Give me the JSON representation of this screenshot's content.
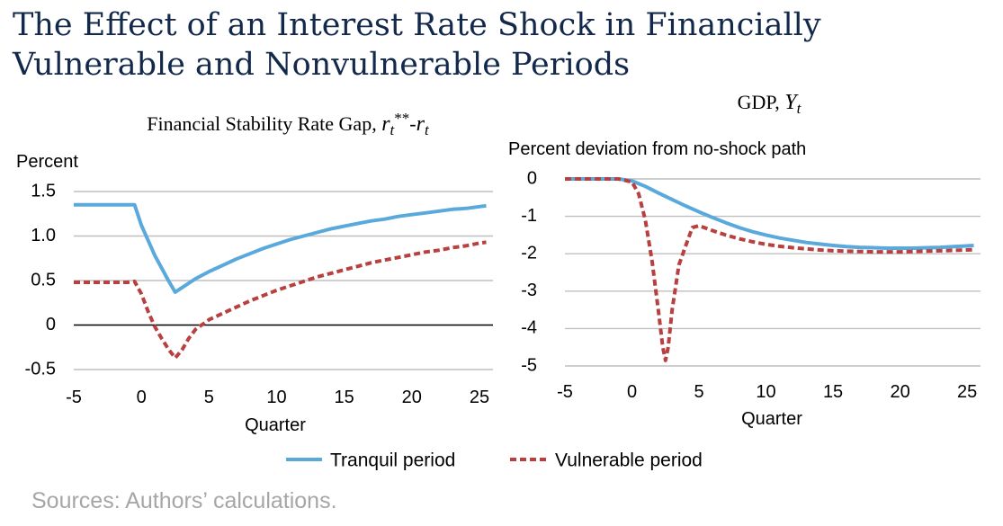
{
  "title": "The Effect of an Interest Rate Shock in Financially Vulnerable and Nonvulnerable Periods",
  "source": "Sources: Authors’ calculations.",
  "legend": [
    {
      "name": "Tranquil period",
      "color": "#5aa9dc",
      "style": "solid"
    },
    {
      "name": "Vulnerable period",
      "color": "#b84040",
      "style": "dashed"
    }
  ],
  "colors": {
    "tranquil": "#5aa9dc",
    "vulnerable": "#b84040",
    "grid": "#bfbfbf",
    "title": "#13294b"
  },
  "chart_data": [
    {
      "type": "line",
      "title": "Financial Stability Rate Gap, ",
      "title_math": "r",
      "title_sub": "t",
      "title_sup": "**",
      "title_dash": "-",
      "title_math2": "r",
      "title_sub2": "t",
      "ylabel": "Percent",
      "xlabel": "Quarter",
      "xlim": [
        -5,
        26
      ],
      "ylim": [
        -0.5,
        1.5
      ],
      "xticks": [
        -5,
        0,
        5,
        10,
        15,
        20,
        25
      ],
      "yticks": [
        -0.5,
        0,
        0.5,
        1.0,
        1.5
      ],
      "ytick_labels": [
        "-0.5",
        "0",
        "0.5",
        "1.0",
        "1.5"
      ],
      "zero_line": true,
      "grid": true,
      "series": [
        {
          "name": "Tranquil period",
          "x": [
            -5,
            -4,
            -3,
            -2,
            -1,
            -0.5,
            0,
            1,
            2,
            2.5,
            3,
            4,
            5,
            6,
            7,
            8,
            9,
            10,
            11,
            12,
            13,
            14,
            15,
            16,
            17,
            18,
            19,
            20,
            21,
            22,
            23,
            24,
            25,
            25.5
          ],
          "y": [
            1.35,
            1.35,
            1.35,
            1.35,
            1.35,
            1.35,
            1.12,
            0.78,
            0.5,
            0.37,
            0.42,
            0.52,
            0.6,
            0.67,
            0.74,
            0.8,
            0.86,
            0.91,
            0.96,
            1.0,
            1.04,
            1.08,
            1.11,
            1.14,
            1.17,
            1.19,
            1.22,
            1.24,
            1.26,
            1.28,
            1.3,
            1.31,
            1.33,
            1.34
          ]
        },
        {
          "name": "Vulnerable period",
          "x": [
            -5,
            -4,
            -3,
            -2,
            -1,
            -0.5,
            0,
            0.5,
            1,
            1.5,
            2,
            2.5,
            3,
            3.5,
            4,
            5,
            6,
            7,
            8,
            9,
            10,
            11,
            12,
            13,
            14,
            15,
            16,
            17,
            18,
            19,
            20,
            21,
            22,
            23,
            24,
            25,
            25.5
          ],
          "y": [
            0.48,
            0.48,
            0.48,
            0.48,
            0.48,
            0.49,
            0.35,
            0.15,
            -0.02,
            -0.15,
            -0.27,
            -0.37,
            -0.28,
            -0.15,
            -0.05,
            0.06,
            0.13,
            0.2,
            0.27,
            0.33,
            0.39,
            0.44,
            0.49,
            0.54,
            0.58,
            0.62,
            0.66,
            0.7,
            0.73,
            0.76,
            0.79,
            0.82,
            0.84,
            0.87,
            0.89,
            0.92,
            0.93
          ]
        }
      ]
    },
    {
      "type": "line",
      "title": "GDP, ",
      "title_math": "Y",
      "title_sub": "t",
      "ylabel": "Percent deviation from no-shock path",
      "xlabel": "Quarter",
      "xlim": [
        -5,
        26
      ],
      "ylim": [
        -5,
        0
      ],
      "xticks": [
        -5,
        0,
        5,
        10,
        15,
        20,
        25
      ],
      "yticks": [
        -5,
        -4,
        -3,
        -2,
        -1,
        0
      ],
      "ytick_labels": [
        "-5",
        "-4",
        "-3",
        "-2",
        "-1",
        "0"
      ],
      "zero_line": false,
      "grid": true,
      "series": [
        {
          "name": "Tranquil period",
          "x": [
            -5,
            -4,
            -3,
            -2,
            -1,
            0,
            1,
            2,
            3,
            4,
            5,
            6,
            7,
            8,
            9,
            10,
            11,
            12,
            13,
            14,
            15,
            16,
            17,
            18,
            19,
            20,
            21,
            22,
            23,
            24,
            25,
            25.5
          ],
          "y": [
            0,
            0,
            0,
            0,
            0,
            -0.05,
            -0.2,
            -0.38,
            -0.55,
            -0.72,
            -0.88,
            -1.03,
            -1.17,
            -1.3,
            -1.41,
            -1.5,
            -1.58,
            -1.64,
            -1.7,
            -1.74,
            -1.78,
            -1.81,
            -1.83,
            -1.84,
            -1.85,
            -1.85,
            -1.85,
            -1.84,
            -1.83,
            -1.81,
            -1.79,
            -1.78
          ]
        },
        {
          "name": "Vulnerable period",
          "x": [
            -5,
            -4,
            -3,
            -2,
            -1,
            0,
            0.5,
            1,
            1.5,
            2,
            2.3,
            2.5,
            2.7,
            3,
            3.5,
            4,
            4.5,
            5,
            6,
            7,
            8,
            9,
            10,
            11,
            12,
            13,
            14,
            15,
            16,
            17,
            18,
            19,
            20,
            21,
            22,
            23,
            24,
            25,
            25.5
          ],
          "y": [
            0,
            0,
            0,
            0,
            0,
            -0.08,
            -0.4,
            -1.1,
            -2.2,
            -3.6,
            -4.5,
            -4.85,
            -4.5,
            -3.5,
            -2.3,
            -1.8,
            -1.3,
            -1.25,
            -1.38,
            -1.5,
            -1.6,
            -1.68,
            -1.75,
            -1.8,
            -1.84,
            -1.87,
            -1.9,
            -1.92,
            -1.93,
            -1.94,
            -1.95,
            -1.95,
            -1.95,
            -1.94,
            -1.93,
            -1.92,
            -1.91,
            -1.9,
            -1.89
          ]
        }
      ]
    }
  ]
}
